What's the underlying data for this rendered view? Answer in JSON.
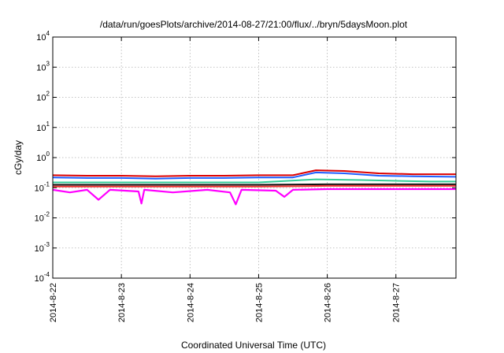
{
  "chart_data": {
    "type": "line",
    "title": "/data/run/goesPlots/archive/2014-08-27/21:00/flux/../bryn/5daysMoon.plot",
    "xlabel": "Coordinated Universal Time (UTC)",
    "ylabel": "cGy/day",
    "y_scale": "log",
    "ylim": [
      0.0001,
      10000
    ],
    "y_ticks": [
      {
        "base": "10",
        "exp": "4",
        "value": 10000
      },
      {
        "base": "10",
        "exp": "3",
        "value": 1000
      },
      {
        "base": "10",
        "exp": "2",
        "value": 100
      },
      {
        "base": "10",
        "exp": "1",
        "value": 10
      },
      {
        "base": "10",
        "exp": "0",
        "value": 1
      },
      {
        "base": "10",
        "exp": "-1",
        "value": 0.1
      },
      {
        "base": "10",
        "exp": "-2",
        "value": 0.01
      },
      {
        "base": "10",
        "exp": "-3",
        "value": 0.001
      },
      {
        "base": "10",
        "exp": "-4",
        "value": 0.0001
      }
    ],
    "xlim": [
      "2014-08-22",
      "2014-08-27T21:00"
    ],
    "x_ticks": [
      "2014-8-22",
      "2014-8-23",
      "2014-8-24",
      "2014-8-25",
      "2014-8-26",
      "2014-8-27"
    ],
    "grid": true,
    "series": [
      {
        "color": "#dd0000",
        "values": [
          {
            "x": "2014-08-22T00:00",
            "y": 0.26
          },
          {
            "x": "2014-08-22T12:00",
            "y": 0.25
          },
          {
            "x": "2014-08-23T00:00",
            "y": 0.25
          },
          {
            "x": "2014-08-23T12:00",
            "y": 0.24
          },
          {
            "x": "2014-08-24T00:00",
            "y": 0.25
          },
          {
            "x": "2014-08-24T12:00",
            "y": 0.25
          },
          {
            "x": "2014-08-25T00:00",
            "y": 0.26
          },
          {
            "x": "2014-08-25T12:00",
            "y": 0.26
          },
          {
            "x": "2014-08-25T20:00",
            "y": 0.38
          },
          {
            "x": "2014-08-26T06:00",
            "y": 0.36
          },
          {
            "x": "2014-08-26T18:00",
            "y": 0.3
          },
          {
            "x": "2014-08-27T06:00",
            "y": 0.28
          },
          {
            "x": "2014-08-27T21:00",
            "y": 0.28
          }
        ]
      },
      {
        "color": "#1f5fff",
        "values": [
          {
            "x": "2014-08-22T00:00",
            "y": 0.22
          },
          {
            "x": "2014-08-22T12:00",
            "y": 0.21
          },
          {
            "x": "2014-08-23T00:00",
            "y": 0.21
          },
          {
            "x": "2014-08-23T12:00",
            "y": 0.2
          },
          {
            "x": "2014-08-24T00:00",
            "y": 0.21
          },
          {
            "x": "2014-08-24T12:00",
            "y": 0.21
          },
          {
            "x": "2014-08-25T00:00",
            "y": 0.22
          },
          {
            "x": "2014-08-25T12:00",
            "y": 0.22
          },
          {
            "x": "2014-08-25T20:00",
            "y": 0.32
          },
          {
            "x": "2014-08-26T06:00",
            "y": 0.3
          },
          {
            "x": "2014-08-26T18:00",
            "y": 0.25
          },
          {
            "x": "2014-08-27T06:00",
            "y": 0.24
          },
          {
            "x": "2014-08-27T21:00",
            "y": 0.23
          }
        ]
      },
      {
        "color": "#33cc99",
        "values": [
          {
            "x": "2014-08-22T00:00",
            "y": 0.15
          },
          {
            "x": "2014-08-23T00:00",
            "y": 0.15
          },
          {
            "x": "2014-08-24T00:00",
            "y": 0.15
          },
          {
            "x": "2014-08-25T00:00",
            "y": 0.15
          },
          {
            "x": "2014-08-25T20:00",
            "y": 0.19
          },
          {
            "x": "2014-08-26T12:00",
            "y": 0.18
          },
          {
            "x": "2014-08-27T12:00",
            "y": 0.16
          },
          {
            "x": "2014-08-27T21:00",
            "y": 0.16
          }
        ]
      },
      {
        "color": "#111111",
        "values": [
          {
            "x": "2014-08-22T00:00",
            "y": 0.125
          },
          {
            "x": "2014-08-23T00:00",
            "y": 0.125
          },
          {
            "x": "2014-08-24T00:00",
            "y": 0.125
          },
          {
            "x": "2014-08-25T00:00",
            "y": 0.125
          },
          {
            "x": "2014-08-26T00:00",
            "y": 0.13
          },
          {
            "x": "2014-08-27T00:00",
            "y": 0.13
          },
          {
            "x": "2014-08-27T21:00",
            "y": 0.13
          }
        ]
      },
      {
        "color": "#ee3333",
        "values": [
          {
            "x": "2014-08-22T00:00",
            "y": 0.11
          },
          {
            "x": "2014-08-23T00:00",
            "y": 0.11
          },
          {
            "x": "2014-08-24T00:00",
            "y": 0.11
          },
          {
            "x": "2014-08-25T00:00",
            "y": 0.11
          },
          {
            "x": "2014-08-26T00:00",
            "y": 0.115
          },
          {
            "x": "2014-08-27T00:00",
            "y": 0.115
          },
          {
            "x": "2014-08-27T21:00",
            "y": 0.115
          }
        ]
      },
      {
        "color": "#ff00ff",
        "values": [
          {
            "x": "2014-08-22T00:00",
            "y": 0.085
          },
          {
            "x": "2014-08-22T06:00",
            "y": 0.07
          },
          {
            "x": "2014-08-22T12:00",
            "y": 0.085
          },
          {
            "x": "2014-08-22T16:00",
            "y": 0.04
          },
          {
            "x": "2014-08-22T20:00",
            "y": 0.085
          },
          {
            "x": "2014-08-23T06:00",
            "y": 0.075
          },
          {
            "x": "2014-08-23T07:00",
            "y": 0.03
          },
          {
            "x": "2014-08-23T08:00",
            "y": 0.085
          },
          {
            "x": "2014-08-23T18:00",
            "y": 0.07
          },
          {
            "x": "2014-08-24T06:00",
            "y": 0.085
          },
          {
            "x": "2014-08-24T14:00",
            "y": 0.07
          },
          {
            "x": "2014-08-24T16:00",
            "y": 0.028
          },
          {
            "x": "2014-08-24T18:00",
            "y": 0.085
          },
          {
            "x": "2014-08-25T06:00",
            "y": 0.08
          },
          {
            "x": "2014-08-25T09:00",
            "y": 0.05
          },
          {
            "x": "2014-08-25T12:00",
            "y": 0.085
          },
          {
            "x": "2014-08-26T00:00",
            "y": 0.09
          },
          {
            "x": "2014-08-26T12:00",
            "y": 0.09
          },
          {
            "x": "2014-08-27T00:00",
            "y": 0.09
          },
          {
            "x": "2014-08-27T12:00",
            "y": 0.09
          },
          {
            "x": "2014-08-27T21:00",
            "y": 0.09
          }
        ]
      }
    ]
  }
}
